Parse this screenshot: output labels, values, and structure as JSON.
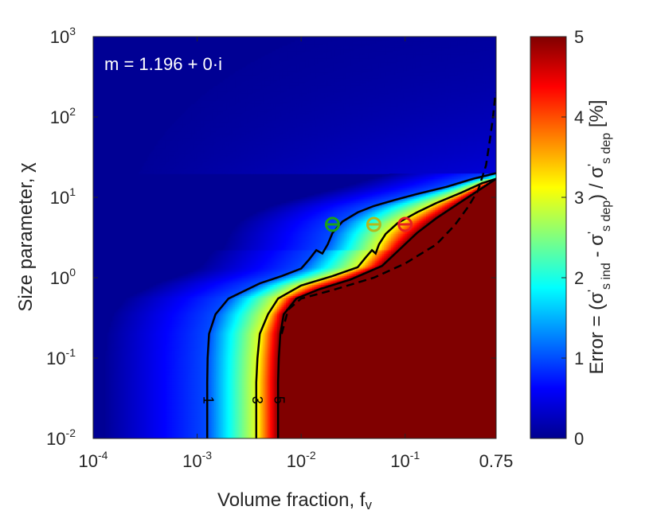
{
  "chart_data": {
    "type": "heatmap",
    "annotation": "m = 1.196 + 0·i",
    "xlabel": "Volume fraction, f",
    "xlabel_sub": "v",
    "ylabel": "Size parameter, χ",
    "x_scale": "log",
    "y_scale": "log",
    "xlim": [
      0.0001,
      0.75
    ],
    "ylim": [
      0.01,
      1000
    ],
    "x_ticks": [
      {
        "value": 0.0001,
        "base": "10",
        "exp": "-4"
      },
      {
        "value": 0.001,
        "base": "10",
        "exp": "-3"
      },
      {
        "value": 0.01,
        "base": "10",
        "exp": "-2"
      },
      {
        "value": 0.1,
        "base": "10",
        "exp": "-1"
      },
      {
        "value": 0.75,
        "text": "0.75"
      }
    ],
    "y_ticks": [
      {
        "value": 0.01,
        "base": "10",
        "exp": "-2"
      },
      {
        "value": 0.1,
        "base": "10",
        "exp": "-1"
      },
      {
        "value": 1,
        "base": "10",
        "exp": "0"
      },
      {
        "value": 10,
        "base": "10",
        "exp": "1"
      },
      {
        "value": 100,
        "base": "10",
        "exp": "2"
      },
      {
        "value": 1000,
        "base": "10",
        "exp": "3"
      }
    ],
    "colorbar": {
      "colormap": "jet",
      "range": [
        0,
        5
      ],
      "ticks": [
        "0",
        "1",
        "2",
        "3",
        "4",
        "5"
      ],
      "label": "Error = (σ's ind - σ's dep) / σ's dep [%]"
    },
    "contours": [
      {
        "level": "1",
        "style": "solid",
        "points": [
          [
            0.00125,
            0.01
          ],
          [
            0.00125,
            0.05
          ],
          [
            0.00126,
            0.1
          ],
          [
            0.0013,
            0.2
          ],
          [
            0.0015,
            0.35
          ],
          [
            0.002,
            0.55
          ],
          [
            0.004,
            0.85
          ],
          [
            0.0065,
            1.05
          ],
          [
            0.01,
            1.3
          ],
          [
            0.012,
            1.7
          ],
          [
            0.014,
            2.2
          ],
          [
            0.016,
            2.0
          ],
          [
            0.018,
            2.6
          ],
          [
            0.02,
            3.6
          ],
          [
            0.025,
            5.0
          ],
          [
            0.035,
            6.5
          ],
          [
            0.05,
            7.8
          ],
          [
            0.08,
            9.3
          ],
          [
            0.13,
            11
          ],
          [
            0.25,
            13.5
          ],
          [
            0.45,
            17
          ],
          [
            0.75,
            20
          ]
        ]
      },
      {
        "level": "3",
        "style": "solid",
        "points": [
          [
            0.0037,
            0.01
          ],
          [
            0.0037,
            0.05
          ],
          [
            0.0038,
            0.1
          ],
          [
            0.004,
            0.2
          ],
          [
            0.0048,
            0.35
          ],
          [
            0.006,
            0.55
          ],
          [
            0.01,
            0.8
          ],
          [
            0.02,
            1.05
          ],
          [
            0.035,
            1.35
          ],
          [
            0.042,
            1.8
          ],
          [
            0.048,
            2.2
          ],
          [
            0.052,
            2.0
          ],
          [
            0.056,
            2.6
          ],
          [
            0.065,
            3.5
          ],
          [
            0.085,
            4.8
          ],
          [
            0.13,
            6.5
          ],
          [
            0.2,
            8.5
          ],
          [
            0.35,
            11.5
          ],
          [
            0.55,
            15
          ],
          [
            0.75,
            17
          ]
        ]
      },
      {
        "level": "5",
        "style": "solid",
        "points": [
          [
            0.006,
            0.01
          ],
          [
            0.006,
            0.05
          ],
          [
            0.0061,
            0.1
          ],
          [
            0.0063,
            0.2
          ],
          [
            0.0068,
            0.35
          ],
          [
            0.009,
            0.55
          ],
          [
            0.015,
            0.72
          ],
          [
            0.03,
            0.95
          ],
          [
            0.06,
            1.4
          ],
          [
            0.09,
            2.3
          ],
          [
            0.13,
            3.6
          ],
          [
            0.2,
            5.5
          ],
          [
            0.3,
            7.8
          ],
          [
            0.45,
            11
          ],
          [
            0.75,
            17
          ]
        ]
      },
      {
        "level": "",
        "style": "dashed",
        "points": [
          [
            0.0065,
            0.2
          ],
          [
            0.0075,
            0.4
          ],
          [
            0.01,
            0.55
          ],
          [
            0.02,
            0.7
          ],
          [
            0.05,
            1.0
          ],
          [
            0.1,
            1.5
          ],
          [
            0.2,
            2.6
          ],
          [
            0.3,
            4.5
          ],
          [
            0.4,
            7.5
          ],
          [
            0.5,
            12
          ],
          [
            0.6,
            25
          ],
          [
            0.65,
            50
          ],
          [
            0.7,
            100
          ],
          [
            0.74,
            200
          ]
        ]
      }
    ],
    "markers": [
      {
        "x": 0.02,
        "y": 4.6,
        "color": "#1aa11a"
      },
      {
        "x": 0.05,
        "y": 4.6,
        "color": "#b5b81b"
      },
      {
        "x": 0.1,
        "y": 4.6,
        "color": "#e82020"
      }
    ],
    "grid": false
  }
}
